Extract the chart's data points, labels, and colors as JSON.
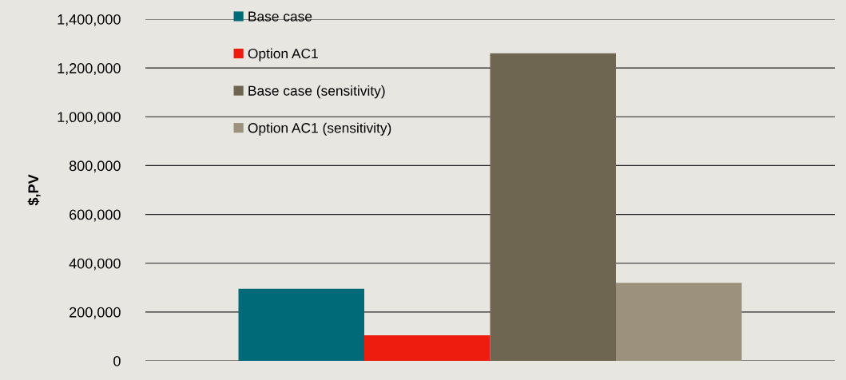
{
  "chart_data": {
    "type": "bar",
    "ylabel": "$,PV",
    "categories": [
      null
    ],
    "series": [
      {
        "name": "Base case",
        "color": "#006a78",
        "values": [
          295000
        ]
      },
      {
        "name": "Option AC1",
        "color": "#ee1c0e",
        "values": [
          105000
        ]
      },
      {
        "name": "Base case (sensitivity)",
        "color": "#6e6651",
        "values": [
          1260000
        ]
      },
      {
        "name": "Option AC1 (sensitivity)",
        "color": "#9c917c",
        "values": [
          320000
        ]
      }
    ],
    "ylim": [
      0,
      1400000
    ],
    "yticks": [
      {
        "value": 0,
        "label": "0"
      },
      {
        "value": 200000,
        "label": "200,000"
      },
      {
        "value": 400000,
        "label": "400,000"
      },
      {
        "value": 600000,
        "label": "600,000"
      },
      {
        "value": 800000,
        "label": "800,000"
      },
      {
        "value": 1000000,
        "label": "1,000,000"
      },
      {
        "value": 1200000,
        "label": "1,200,000"
      },
      {
        "value": 1400000,
        "label": "1,400,000"
      }
    ],
    "grid": "y",
    "legend": "top left"
  }
}
